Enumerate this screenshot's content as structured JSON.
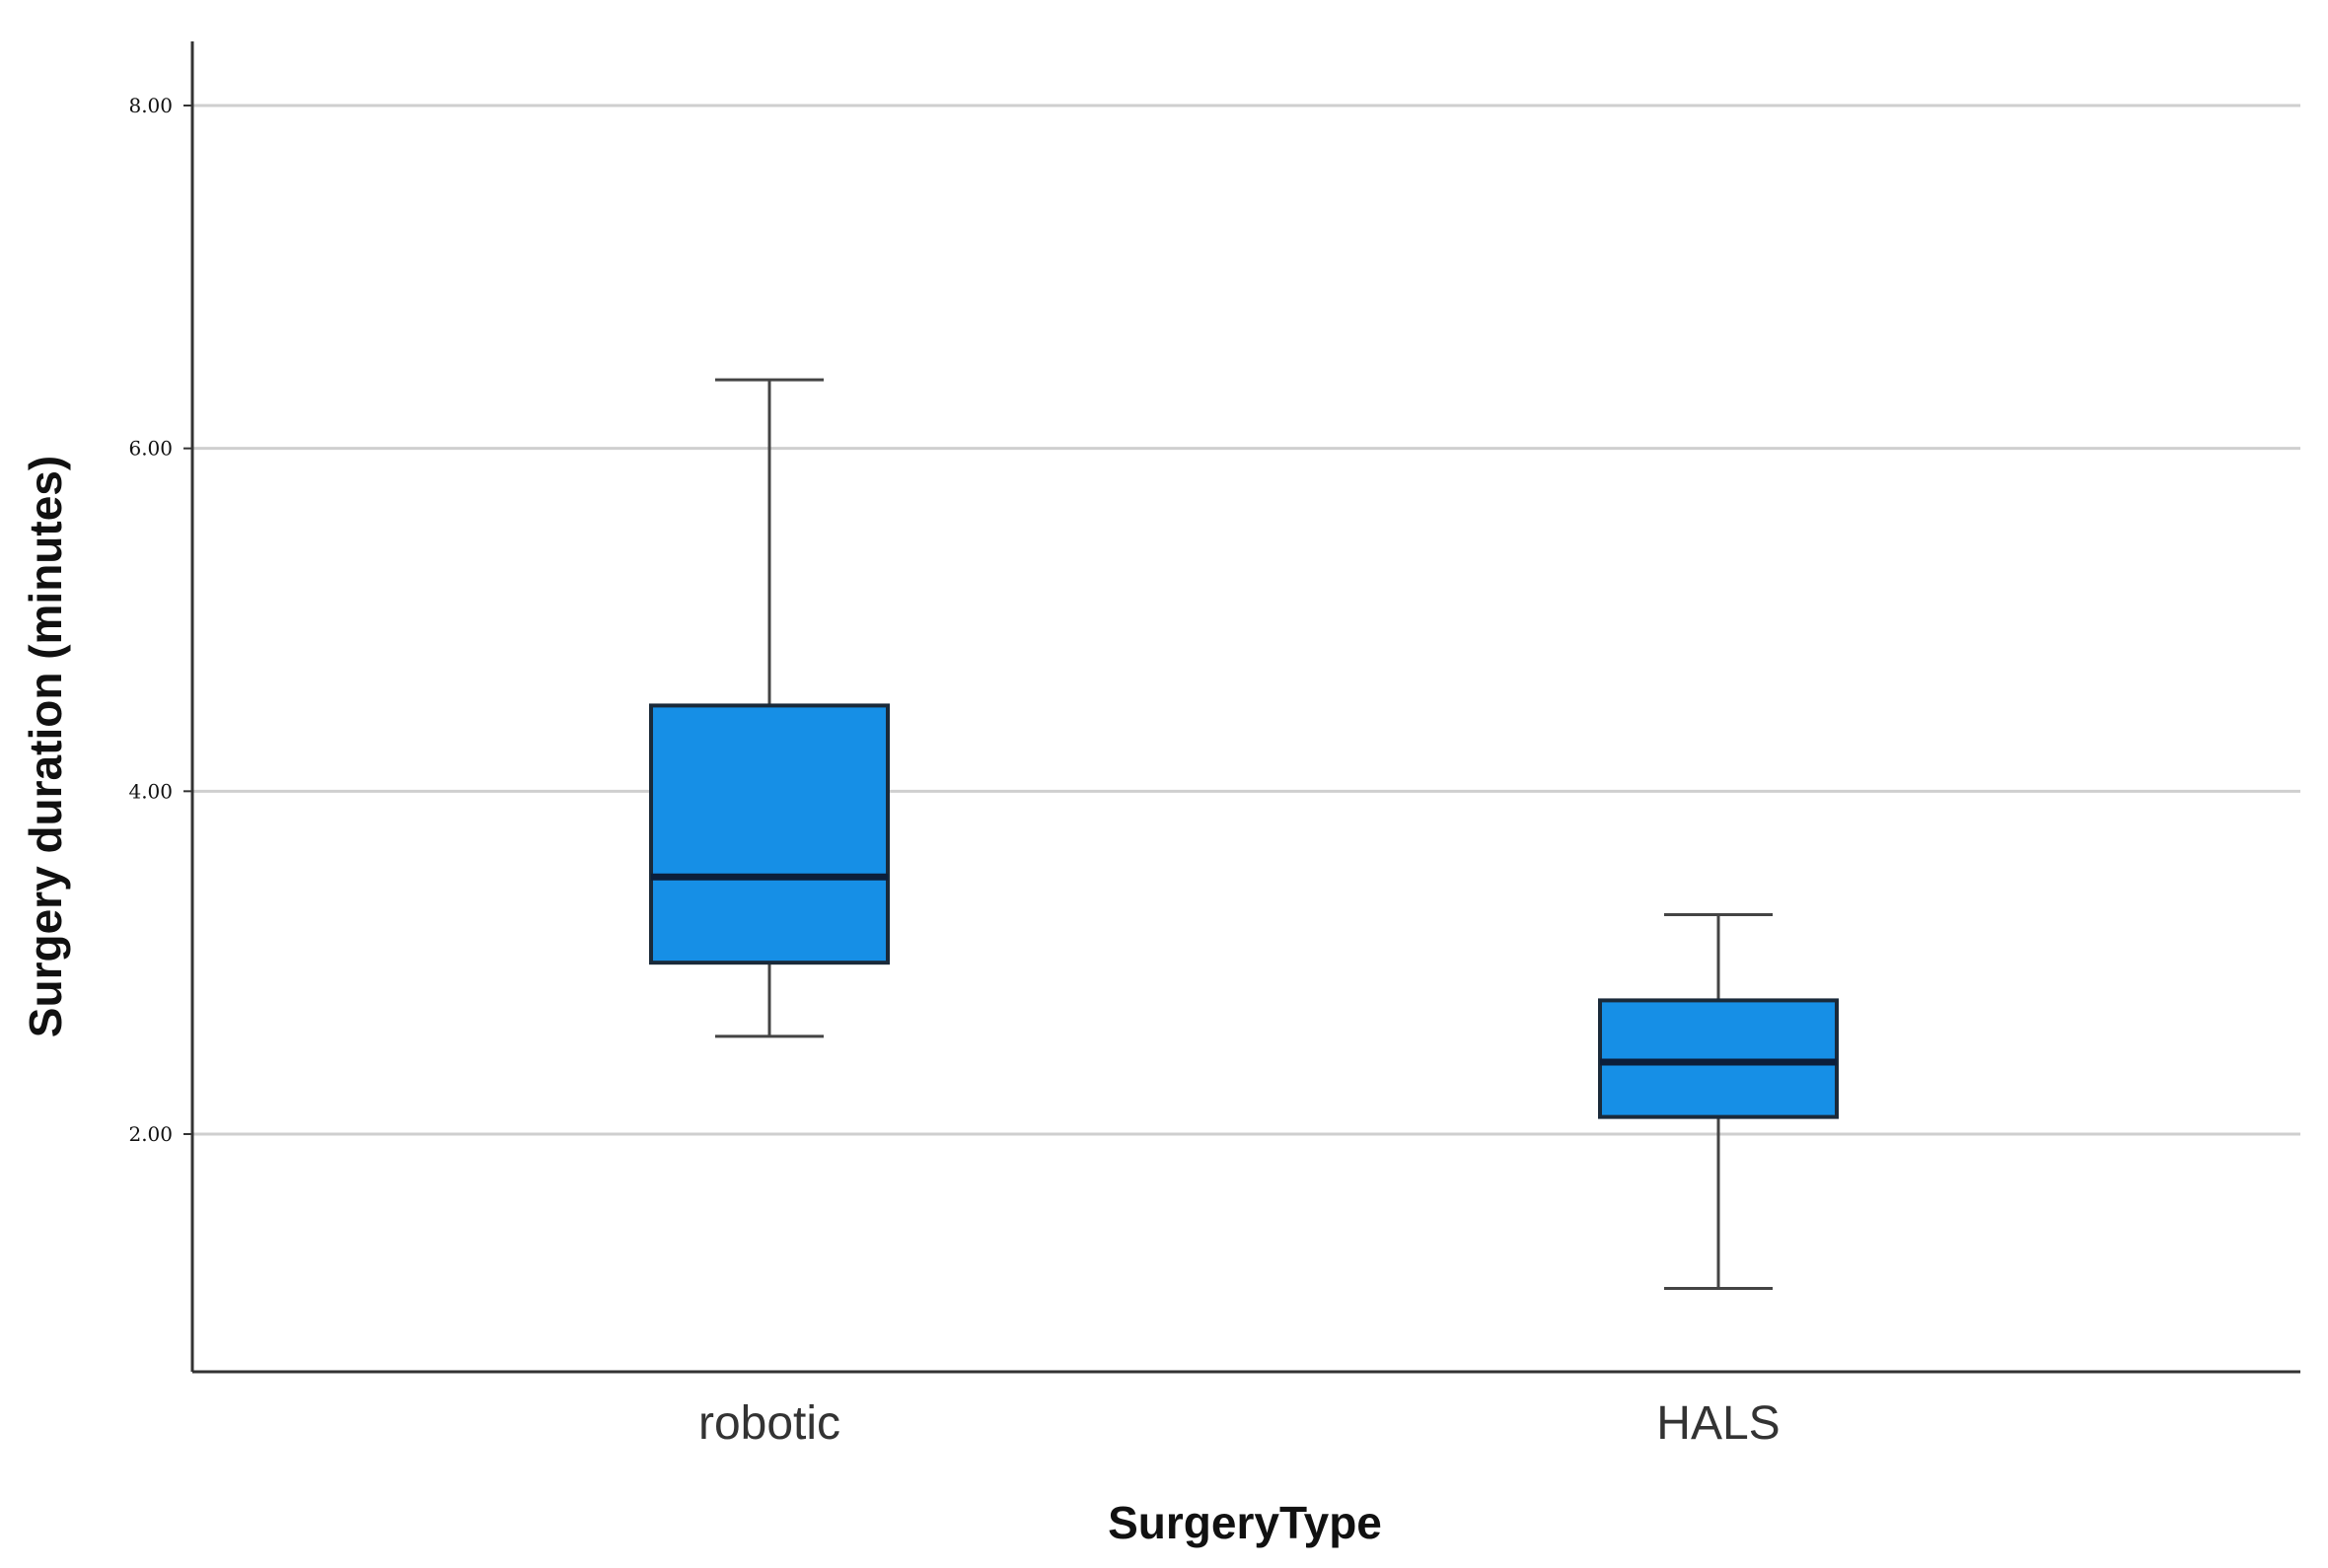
{
  "chart_data": {
    "type": "boxplot",
    "title": "",
    "xlabel": "SurgeryType",
    "ylabel": "Surgery duration (minutes)",
    "ylim": [
      0.7,
      8.4
    ],
    "yticks": [
      {
        "value": 2,
        "label": "2.00"
      },
      {
        "value": 4,
        "label": "4.00"
      },
      {
        "value": 6,
        "label": "6.00"
      },
      {
        "value": 8,
        "label": "8.00"
      }
    ],
    "grid": true,
    "categories": [
      "robotic",
      "HALS"
    ],
    "boxes": [
      {
        "category": "robotic",
        "min": 2.57,
        "q1": 3.0,
        "median": 3.5,
        "q3": 4.5,
        "max": 6.4
      },
      {
        "category": "HALS",
        "min": 1.1,
        "q1": 2.1,
        "median": 2.42,
        "q3": 2.78,
        "max": 3.28
      }
    ],
    "colors": {
      "box_fill": "#168FE6",
      "box_stroke": "#1A2A3A",
      "median": "#0C1E3A",
      "whisker": "#444444",
      "grid": "#CFCFCF",
      "axis": "#333333"
    }
  }
}
